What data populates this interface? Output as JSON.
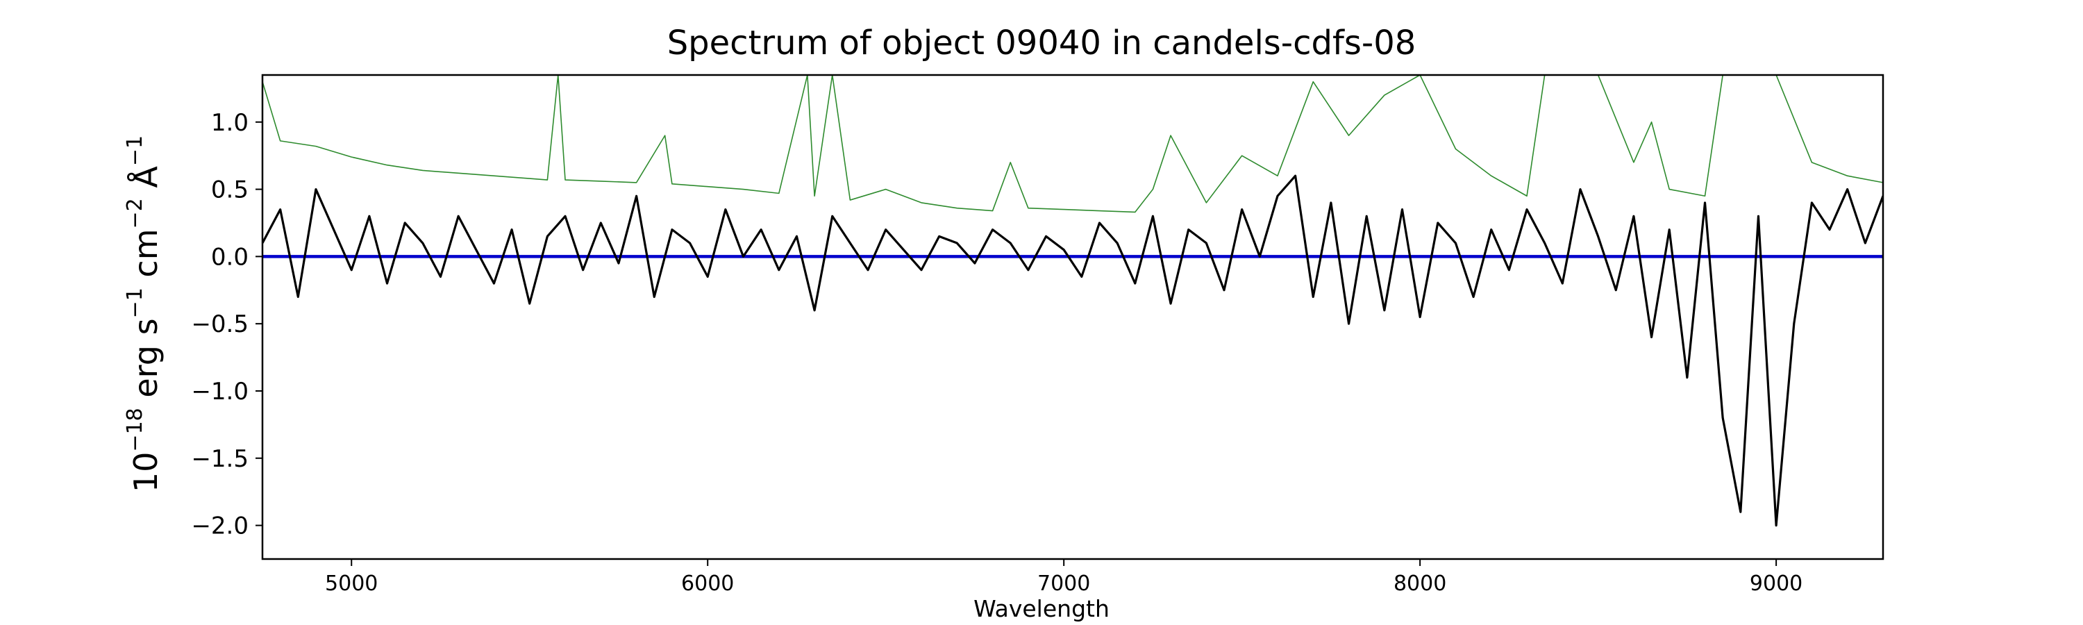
{
  "chart_data": {
    "type": "line",
    "title": "Spectrum of object 09040 in candels-cdfs-08",
    "xlabel": "Wavelength",
    "ylabel": {
      "prefix": "10",
      "exp": "−18",
      "erg": " erg s",
      "s_exp": "−1",
      "cm": " cm",
      "cm_exp": "−2",
      "ang": " Å",
      "ang_exp": "−1"
    },
    "xlim": [
      4750,
      9300
    ],
    "ylim": [
      -2.25,
      1.35
    ],
    "xticks": [
      5000,
      6000,
      7000,
      8000,
      9000
    ],
    "xtick_labels": [
      "5000",
      "6000",
      "7000",
      "8000",
      "9000"
    ],
    "yticks": [
      -2.0,
      -1.5,
      -1.0,
      -0.5,
      0.0,
      0.5,
      1.0
    ],
    "ytick_labels": [
      "−2.0",
      "−1.5",
      "−1.0",
      "−0.5",
      "0.0",
      "0.5",
      "1.0"
    ],
    "grid": false,
    "colors": {
      "flux": "#000000",
      "error": "#2e8b2e",
      "zero": "#0000cc",
      "axes": "#000000"
    },
    "series": [
      {
        "role": "flux",
        "x": [
          4750,
          4800,
          4850,
          4900,
          4950,
          5000,
          5050,
          5100,
          5150,
          5200,
          5250,
          5300,
          5350,
          5400,
          5450,
          5500,
          5550,
          5600,
          5650,
          5700,
          5750,
          5800,
          5850,
          5900,
          5950,
          6000,
          6050,
          6100,
          6150,
          6200,
          6250,
          6300,
          6350,
          6400,
          6450,
          6500,
          6550,
          6600,
          6650,
          6700,
          6750,
          6800,
          6850,
          6900,
          6950,
          7000,
          7050,
          7100,
          7150,
          7200,
          7250,
          7300,
          7350,
          7400,
          7450,
          7500,
          7550,
          7600,
          7650,
          7700,
          7750,
          7800,
          7850,
          7900,
          7950,
          8000,
          8050,
          8100,
          8150,
          8200,
          8250,
          8300,
          8350,
          8400,
          8450,
          8500,
          8550,
          8600,
          8650,
          8700,
          8750,
          8800,
          8850,
          8900,
          8950,
          9000,
          9050,
          9100,
          9150,
          9200,
          9250,
          9300
        ],
        "y": [
          0.1,
          0.35,
          -0.3,
          0.5,
          0.2,
          -0.1,
          0.3,
          -0.2,
          0.25,
          0.1,
          -0.15,
          0.3,
          0.05,
          -0.2,
          0.2,
          -0.35,
          0.15,
          0.3,
          -0.1,
          0.25,
          -0.05,
          0.45,
          -0.3,
          0.2,
          0.1,
          -0.15,
          0.35,
          0.0,
          0.2,
          -0.1,
          0.15,
          -0.4,
          0.3,
          0.1,
          -0.1,
          0.2,
          0.05,
          -0.1,
          0.15,
          0.1,
          -0.05,
          0.2,
          0.1,
          -0.1,
          0.15,
          0.05,
          -0.15,
          0.25,
          0.1,
          -0.2,
          0.3,
          -0.35,
          0.2,
          0.1,
          -0.25,
          0.35,
          0.0,
          0.45,
          0.6,
          -0.3,
          0.4,
          -0.5,
          0.3,
          -0.4,
          0.35,
          -0.45,
          0.25,
          0.1,
          -0.3,
          0.2,
          -0.1,
          0.35,
          0.1,
          -0.2,
          0.5,
          0.15,
          -0.25,
          0.3,
          -0.6,
          0.2,
          -0.9,
          0.4,
          -1.2,
          -1.9,
          0.3,
          -2.0,
          -0.5,
          0.4,
          0.2,
          0.5,
          0.1,
          0.45
        ]
      },
      {
        "role": "error",
        "x": [
          4750,
          4800,
          4900,
          5000,
          5100,
          5200,
          5300,
          5400,
          5500,
          5550,
          5580,
          5600,
          5700,
          5800,
          5880,
          5900,
          6000,
          6100,
          6200,
          6280,
          6300,
          6350,
          6400,
          6500,
          6600,
          6700,
          6800,
          6850,
          6900,
          7000,
          7100,
          7200,
          7250,
          7300,
          7400,
          7500,
          7600,
          7700,
          7800,
          7900,
          8000,
          8100,
          8200,
          8300,
          8350,
          8400,
          8500,
          8600,
          8650,
          8700,
          8800,
          8850,
          8900,
          9000,
          9100,
          9200,
          9300
        ],
        "y": [
          1.3,
          0.86,
          0.82,
          0.74,
          0.68,
          0.64,
          0.62,
          0.6,
          0.58,
          0.57,
          1.35,
          0.57,
          0.56,
          0.55,
          0.9,
          0.54,
          0.52,
          0.5,
          0.47,
          1.35,
          0.45,
          1.35,
          0.42,
          0.5,
          0.4,
          0.36,
          0.34,
          0.7,
          0.36,
          0.35,
          0.34,
          0.33,
          0.5,
          0.9,
          0.4,
          0.75,
          0.6,
          1.3,
          0.9,
          1.2,
          1.35,
          0.8,
          0.6,
          0.45,
          1.35,
          1.35,
          1.35,
          0.7,
          1.0,
          0.5,
          0.45,
          1.35,
          1.35,
          1.35,
          0.7,
          0.6,
          0.55
        ]
      },
      {
        "role": "zero",
        "x": [
          4750,
          9300
        ],
        "y": [
          0.0,
          0.0
        ]
      }
    ]
  }
}
